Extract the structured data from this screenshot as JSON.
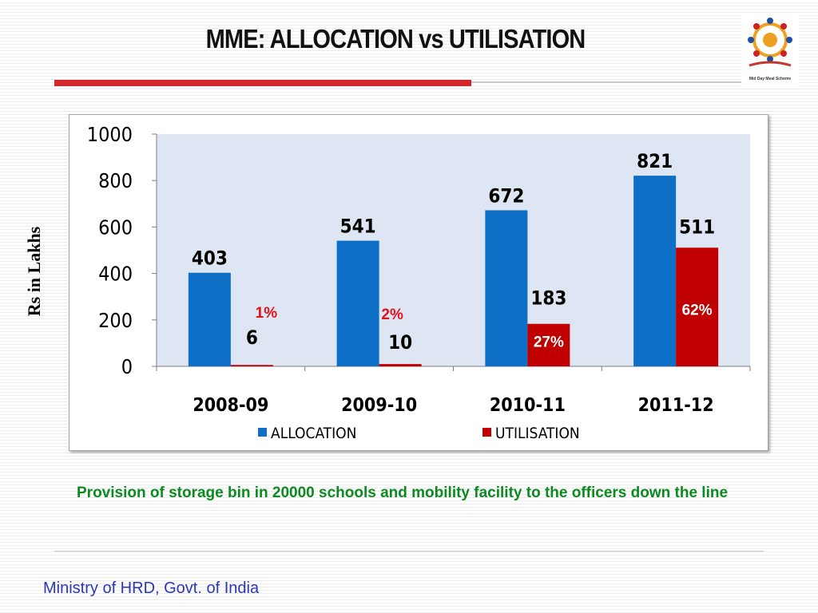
{
  "slide": {
    "title": "MME: ALLOCATION vs UTILISATION",
    "caption": "Provision of storage bin in 20000 schools and mobility facility to the officers down the line",
    "footer": "Ministry of HRD, Govt. of India",
    "logo_caption": "Mid Day Meal Scheme",
    "logo_icon": "mid-day-meal-scheme-logo-icon"
  },
  "colors": {
    "allocation": "#0e6fc7",
    "utilisation": "#c00000",
    "percent_label": "#e3101a",
    "plot_bg": "#dde6f2",
    "title_rule": "#d3272f",
    "caption": "#0b8a20",
    "footer": "#2b36b8"
  },
  "chart_data": {
    "type": "bar",
    "title": "",
    "xlabel": "",
    "ylabel": "Rs in Lakhs",
    "ylim": [
      0,
      1000
    ],
    "yticks": [
      0,
      200,
      400,
      600,
      800,
      1000
    ],
    "grid": false,
    "legend_position": "bottom",
    "categories": [
      "2008-09",
      "2009-10",
      "2010-11",
      "2011-12"
    ],
    "series": [
      {
        "name": "ALLOCATION",
        "values": [
          403,
          541,
          672,
          821
        ],
        "labels": [
          "403",
          "541",
          "672",
          "821"
        ]
      },
      {
        "name": "UTILISATION",
        "values": [
          6,
          10,
          183,
          511
        ],
        "labels": [
          "6",
          "10",
          "183",
          "511"
        ]
      }
    ],
    "annotations": [
      "1%",
      "2%",
      "27%",
      "62%"
    ]
  }
}
